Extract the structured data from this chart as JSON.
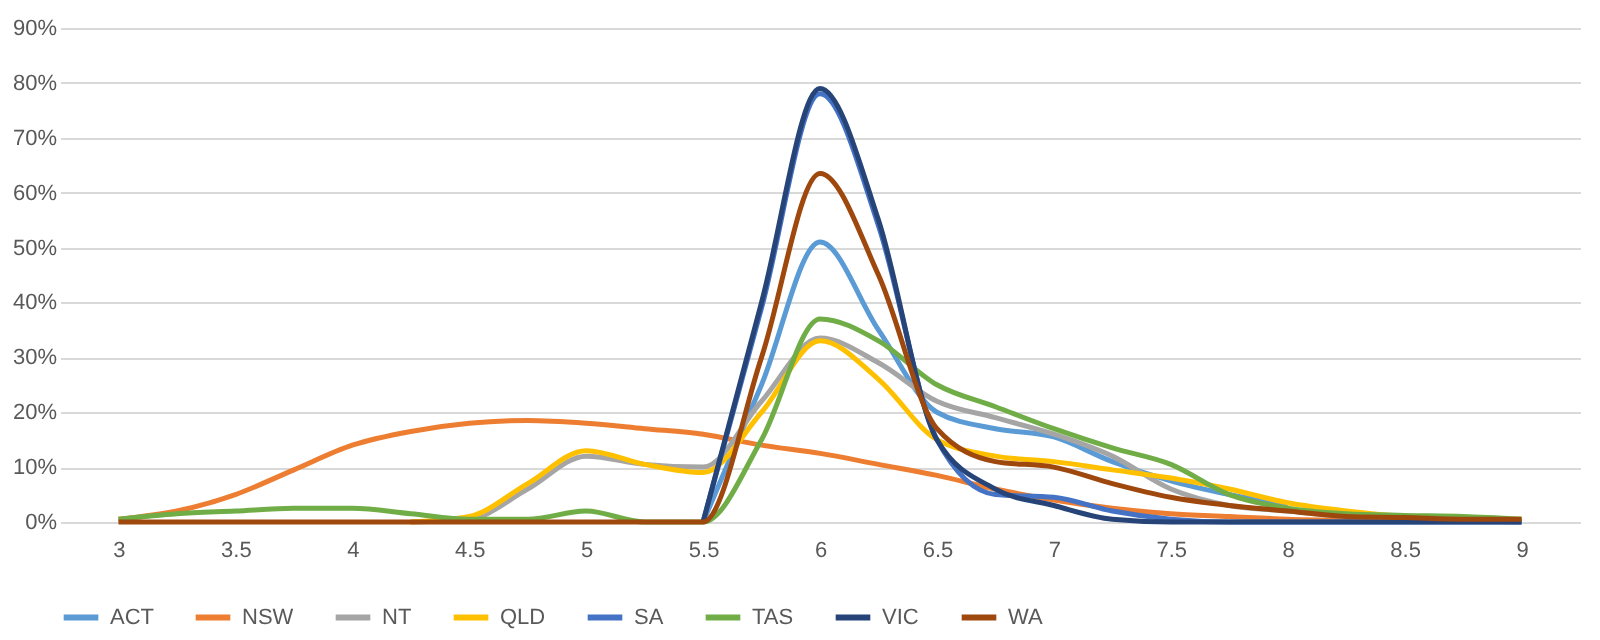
{
  "chart_data": {
    "type": "line",
    "x": [
      3,
      3.25,
      3.5,
      3.75,
      4,
      4.25,
      4.5,
      4.75,
      5,
      5.25,
      5.5,
      5.75,
      6,
      6.25,
      6.5,
      6.75,
      7,
      7.25,
      7.5,
      7.75,
      8,
      8.25,
      8.5,
      8.75,
      9
    ],
    "series": [
      {
        "name": "ACT",
        "color": "#5b9bd5",
        "values": [
          null,
          null,
          null,
          null,
          null,
          null,
          null,
          null,
          null,
          null,
          0,
          25,
          51,
          35,
          20,
          17,
          15.5,
          11,
          7.5,
          5,
          3,
          null,
          null,
          null,
          null
        ]
      },
      {
        "name": "NSW",
        "color": "#ed7d31",
        "values": [
          0.5,
          2,
          5,
          9.5,
          14,
          16.5,
          18,
          18.5,
          18,
          17,
          16,
          14,
          12.5,
          10.5,
          8.5,
          6,
          4,
          2.5,
          1.5,
          1,
          0.5,
          0.3,
          0.2,
          null,
          null
        ]
      },
      {
        "name": "NT",
        "color": "#a5a5a5",
        "values": [
          null,
          null,
          null,
          null,
          null,
          0,
          0.5,
          6,
          12,
          10.5,
          10,
          22,
          33.5,
          29,
          22,
          19,
          16,
          12,
          6,
          3,
          2,
          1,
          0.5,
          0.3,
          0
        ]
      },
      {
        "name": "QLD",
        "color": "#ffc000",
        "values": [
          null,
          null,
          null,
          null,
          null,
          0,
          1,
          7,
          13,
          10.5,
          9,
          20,
          33,
          26,
          15,
          12,
          11,
          9.5,
          8,
          6,
          3.5,
          2,
          1,
          0.5,
          0.5
        ]
      },
      {
        "name": "SA",
        "color": "#4472c4",
        "values": [
          null,
          null,
          null,
          null,
          null,
          null,
          null,
          null,
          null,
          null,
          0,
          39,
          78,
          54,
          15,
          5,
          4.5,
          2,
          0.5,
          0,
          0,
          0,
          0,
          0,
          0
        ]
      },
      {
        "name": "TAS",
        "color": "#70ad47",
        "values": [
          0.5,
          1.5,
          2,
          2.5,
          2.5,
          1.5,
          0.5,
          0.5,
          2,
          0,
          0,
          15,
          37,
          33,
          25,
          21,
          17,
          13.5,
          10.5,
          5,
          2.5,
          1.5,
          1.2,
          1,
          0.5
        ]
      },
      {
        "name": "VIC",
        "color": "#264478",
        "values": [
          null,
          null,
          null,
          null,
          null,
          null,
          null,
          null,
          null,
          null,
          0,
          40,
          79,
          55,
          15,
          6,
          3,
          0.5,
          0,
          0,
          0,
          0,
          0,
          0,
          0
        ]
      },
      {
        "name": "WA",
        "color": "#9e480e",
        "values": [
          0,
          0,
          0,
          0,
          0,
          0,
          0,
          0,
          0,
          0,
          0,
          30,
          63.5,
          45,
          17,
          11,
          10,
          7,
          4.5,
          3,
          2,
          1,
          0.8,
          0.5,
          0.5
        ]
      }
    ],
    "xlim": [
      2.75,
      9.25
    ],
    "xticks": [
      3,
      3.5,
      4,
      4.5,
      5,
      5.5,
      6,
      6.5,
      7,
      7.5,
      8,
      8.5,
      9
    ],
    "ylim": [
      0,
      90
    ],
    "yticks": [
      {
        "value": 0,
        "label": "0%"
      },
      {
        "value": 10,
        "label": "10%"
      },
      {
        "value": 20,
        "label": "20%"
      },
      {
        "value": 30,
        "label": "30%"
      },
      {
        "value": 40,
        "label": "40%"
      },
      {
        "value": 50,
        "label": "50%"
      },
      {
        "value": 60,
        "label": "60%"
      },
      {
        "value": 70,
        "label": "70%"
      },
      {
        "value": 80,
        "label": "80%"
      },
      {
        "value": 90,
        "label": "90%"
      }
    ],
    "grid": "y",
    "legend": "bottom",
    "marker": "none",
    "line_style": "solid"
  }
}
